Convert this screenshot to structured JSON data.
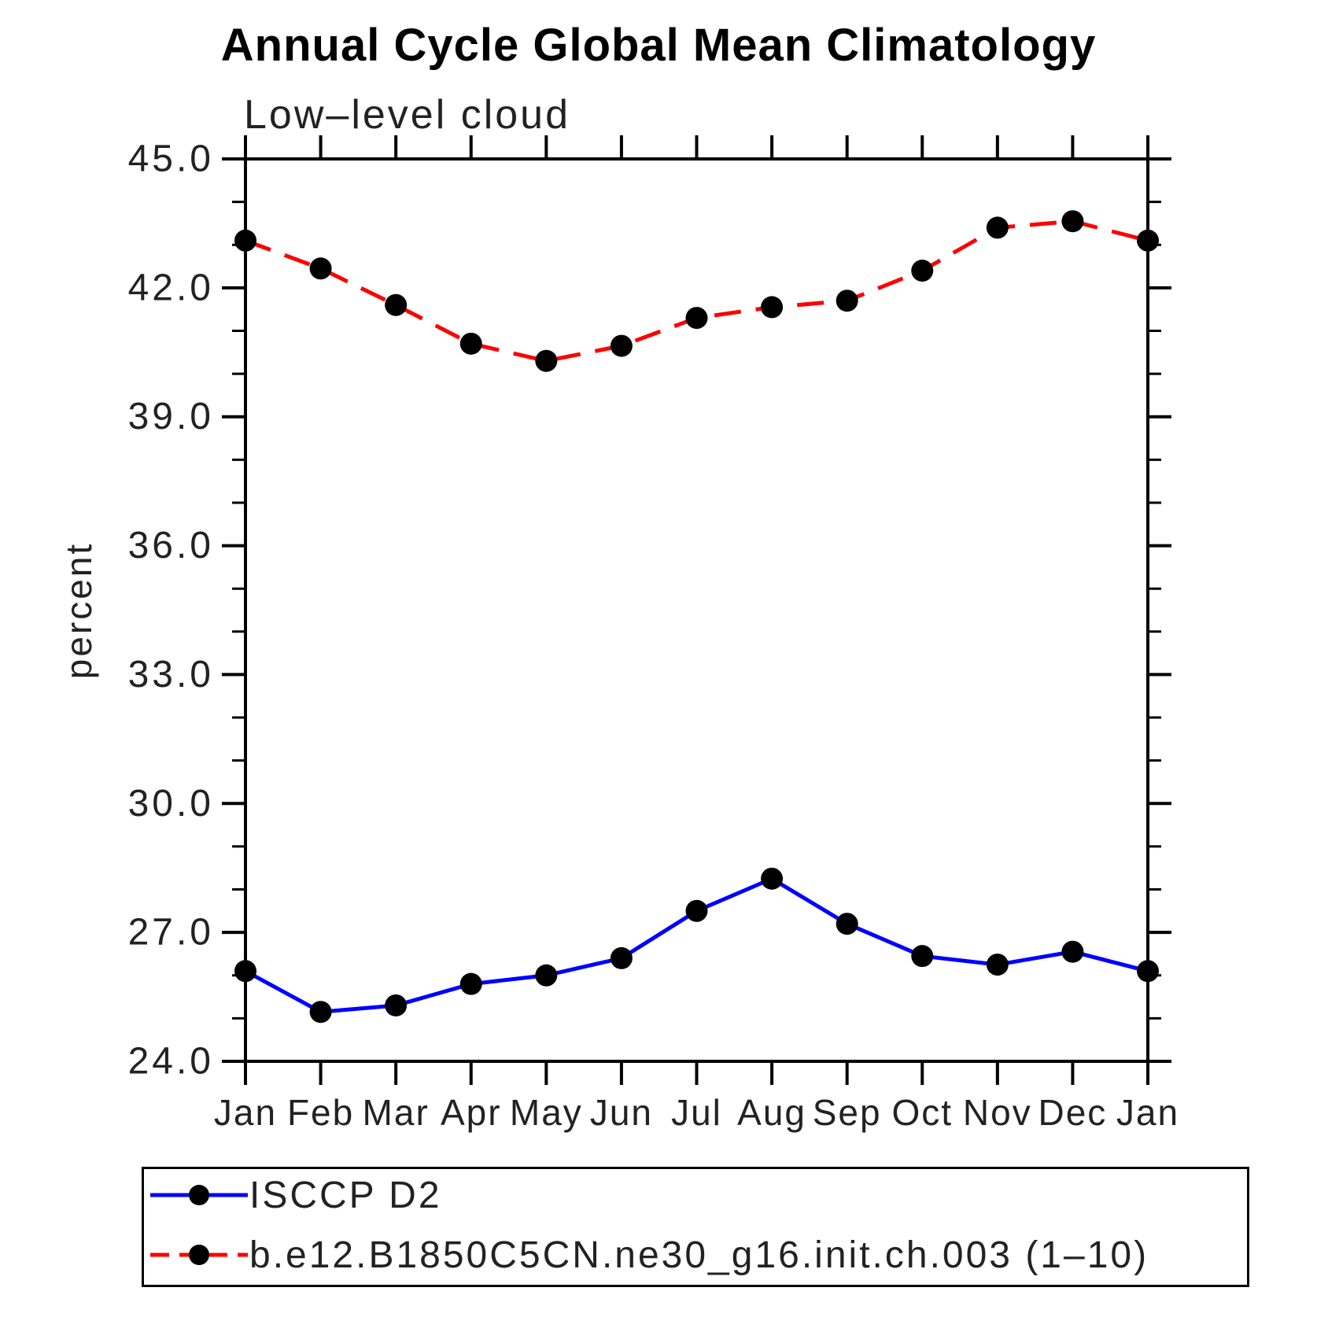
{
  "colors": {
    "background": "#ffffff",
    "axis": "#000000",
    "text": "#222222",
    "marker": "#000000",
    "series_blue": "#0000ff",
    "series_red": "#ff0000"
  },
  "chart_data": {
    "type": "line",
    "title": "Annual Cycle Global Mean Climatology",
    "subtitle": "Low–level cloud",
    "xlabel": "",
    "ylabel": "percent",
    "categories": [
      "Jan",
      "Feb",
      "Mar",
      "Apr",
      "May",
      "Jun",
      "Jul",
      "Aug",
      "Sep",
      "Oct",
      "Nov",
      "Dec",
      "Jan"
    ],
    "ylim": [
      24.0,
      45.0
    ],
    "ytick_major": 3.0,
    "ytick_minor": 1.0,
    "ytick_labels": [
      "24.0",
      "27.0",
      "30.0",
      "33.0",
      "36.0",
      "39.0",
      "42.0",
      "45.0"
    ],
    "grid": false,
    "legend_position": "bottom",
    "series": [
      {
        "name": "ISCCP D2",
        "color": "#0000ff",
        "line_style": "solid",
        "marker": "circle",
        "marker_color": "#000000",
        "values": [
          26.1,
          25.15,
          25.3,
          25.8,
          26.0,
          26.4,
          27.5,
          28.25,
          27.2,
          26.45,
          26.25,
          26.55,
          26.1
        ]
      },
      {
        "name": "b.e12.B1850C5CN.ne30_g16.init.ch.003 (1–10)",
        "color": "#ff0000",
        "line_style": "dashed",
        "marker": "circle",
        "marker_color": "#000000",
        "values": [
          43.1,
          42.45,
          41.6,
          40.7,
          40.3,
          40.65,
          41.3,
          41.55,
          41.7,
          42.4,
          43.4,
          43.55,
          43.1
        ]
      }
    ]
  }
}
